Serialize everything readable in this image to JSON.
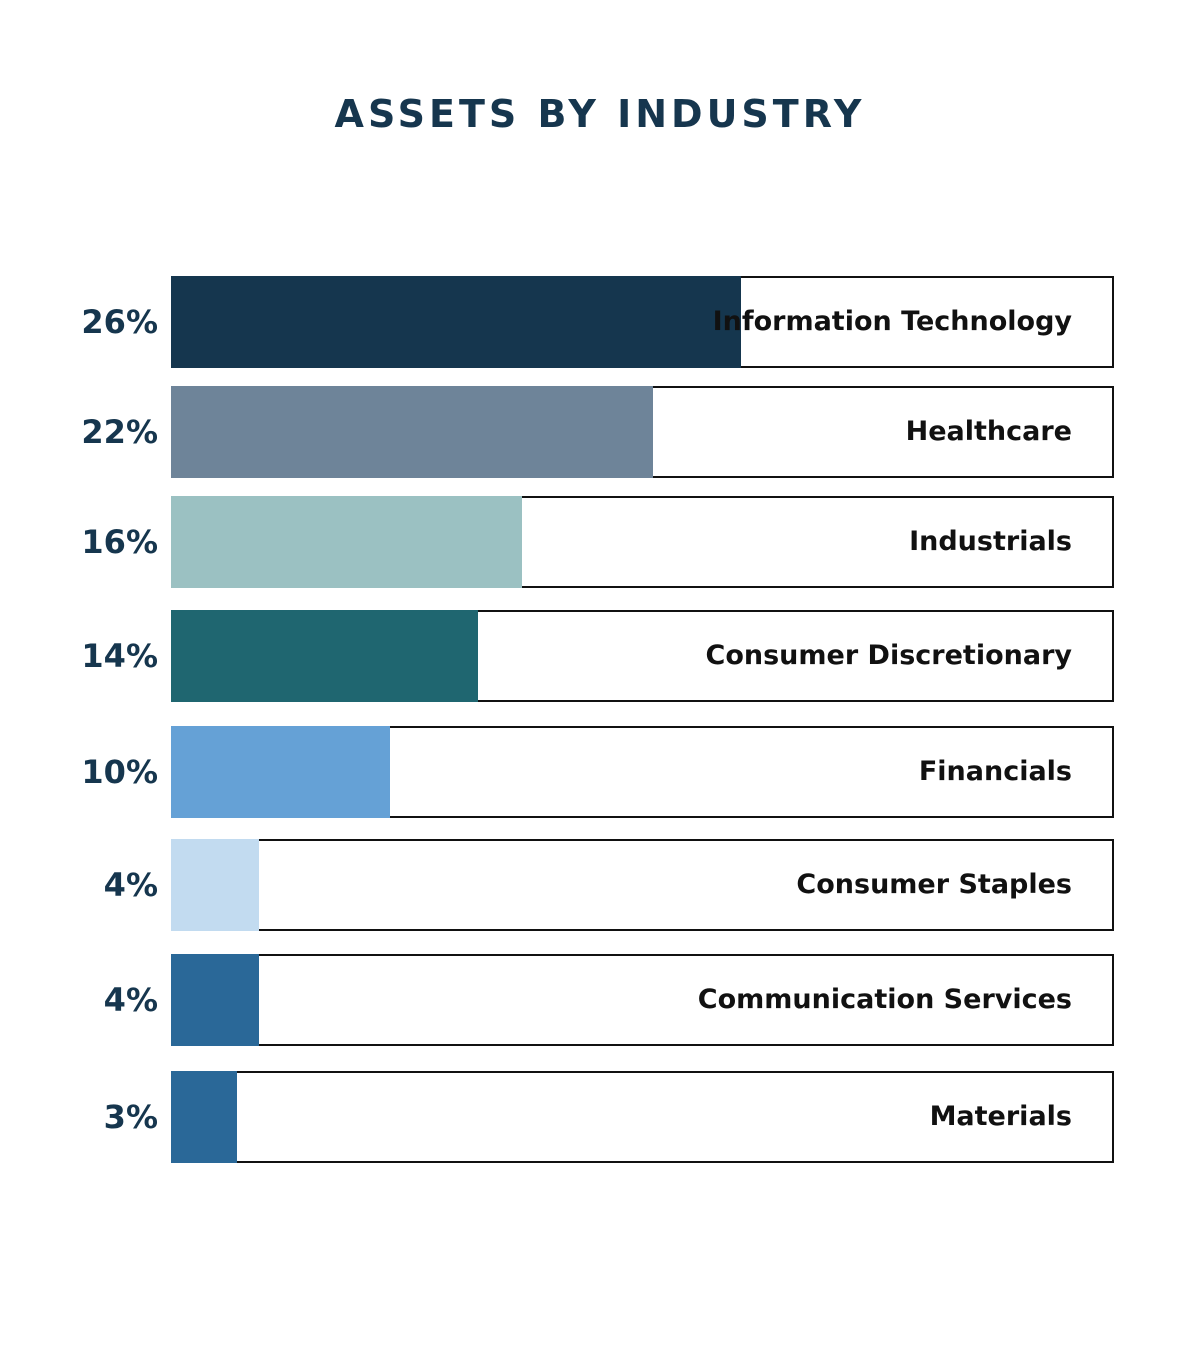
{
  "chart_data": {
    "type": "bar",
    "orientation": "horizontal",
    "title": "ASSETS BY INDUSTRY",
    "xlim": [
      0,
      43
    ],
    "grid": false,
    "legend": "none",
    "bars": [
      {
        "category": "Information Technology",
        "value": 26,
        "label": "26%",
        "color": "#15364e"
      },
      {
        "category": "Healthcare",
        "value": 22,
        "label": "22%",
        "color": "#6e8499"
      },
      {
        "category": "Industrials",
        "value": 16,
        "label": "16%",
        "color": "#9bc1c2"
      },
      {
        "category": "Consumer Discretionary",
        "value": 14,
        "label": "14%",
        "color": "#1f6670"
      },
      {
        "category": "Financials",
        "value": 10,
        "label": "10%",
        "color": "#65a1d6"
      },
      {
        "category": "Consumer Staples",
        "value": 4,
        "label": "4%",
        "color": "#c2dbf0"
      },
      {
        "category": "Communication Services",
        "value": 4,
        "label": "4%",
        "color": "#2a6898"
      },
      {
        "category": "Materials",
        "value": 3,
        "label": "3%",
        "color": "#2a6898"
      }
    ]
  },
  "colors": {
    "title": "#16364e",
    "track_border": "#111111"
  }
}
